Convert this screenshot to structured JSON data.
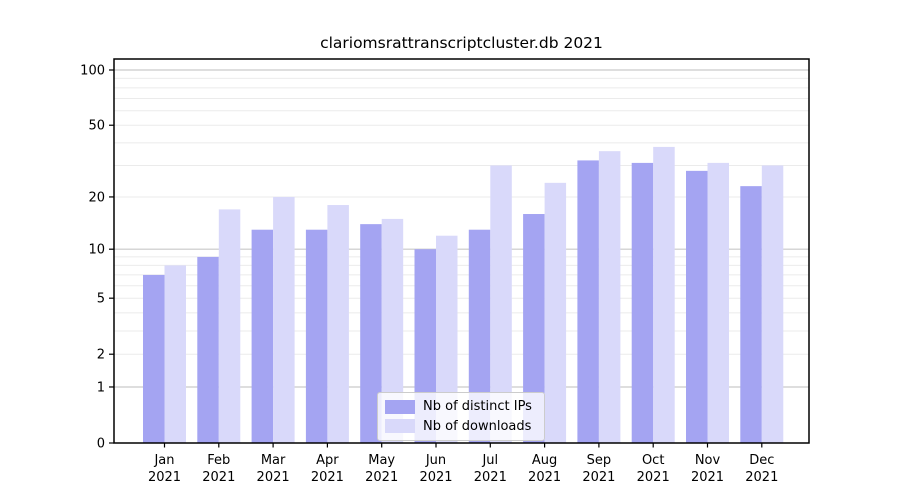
{
  "chart_data": {
    "type": "bar",
    "title": "clariomsrattranscriptcluster.db 2021",
    "xlabel": "",
    "ylabel": "",
    "x_year": "2021",
    "categories": [
      "Jan",
      "Feb",
      "Mar",
      "Apr",
      "May",
      "Jun",
      "Jul",
      "Aug",
      "Sep",
      "Oct",
      "Nov",
      "Dec"
    ],
    "series": [
      {
        "name": "Nb of distinct IPs",
        "color": "#a4a4f2",
        "values": [
          7,
          9,
          13,
          13,
          14,
          10,
          13,
          16,
          32,
          31,
          28,
          23
        ]
      },
      {
        "name": "Nb of downloads",
        "color": "#d9d9fa",
        "values": [
          8,
          17,
          20,
          18,
          15,
          12,
          30,
          24,
          36,
          38,
          31,
          30
        ]
      }
    ],
    "y_axis": {
      "scale": "log1p",
      "tick_values": [
        0,
        1,
        2,
        5,
        10,
        20,
        50,
        100
      ],
      "minor_grid_values": [
        2,
        3,
        4,
        5,
        6,
        7,
        8,
        9,
        20,
        30,
        40,
        50,
        60,
        70,
        80,
        90
      ],
      "major_grid_values": [
        1,
        10,
        100
      ],
      "range_top_value": 115
    },
    "grid": "horizontal",
    "legend_position": "bottom-center-inside",
    "colors": {
      "minor_gridline": "#ebebeb",
      "major_gridline": "#c9c9c9",
      "axis": "#000000",
      "background": "#ffffff"
    }
  }
}
